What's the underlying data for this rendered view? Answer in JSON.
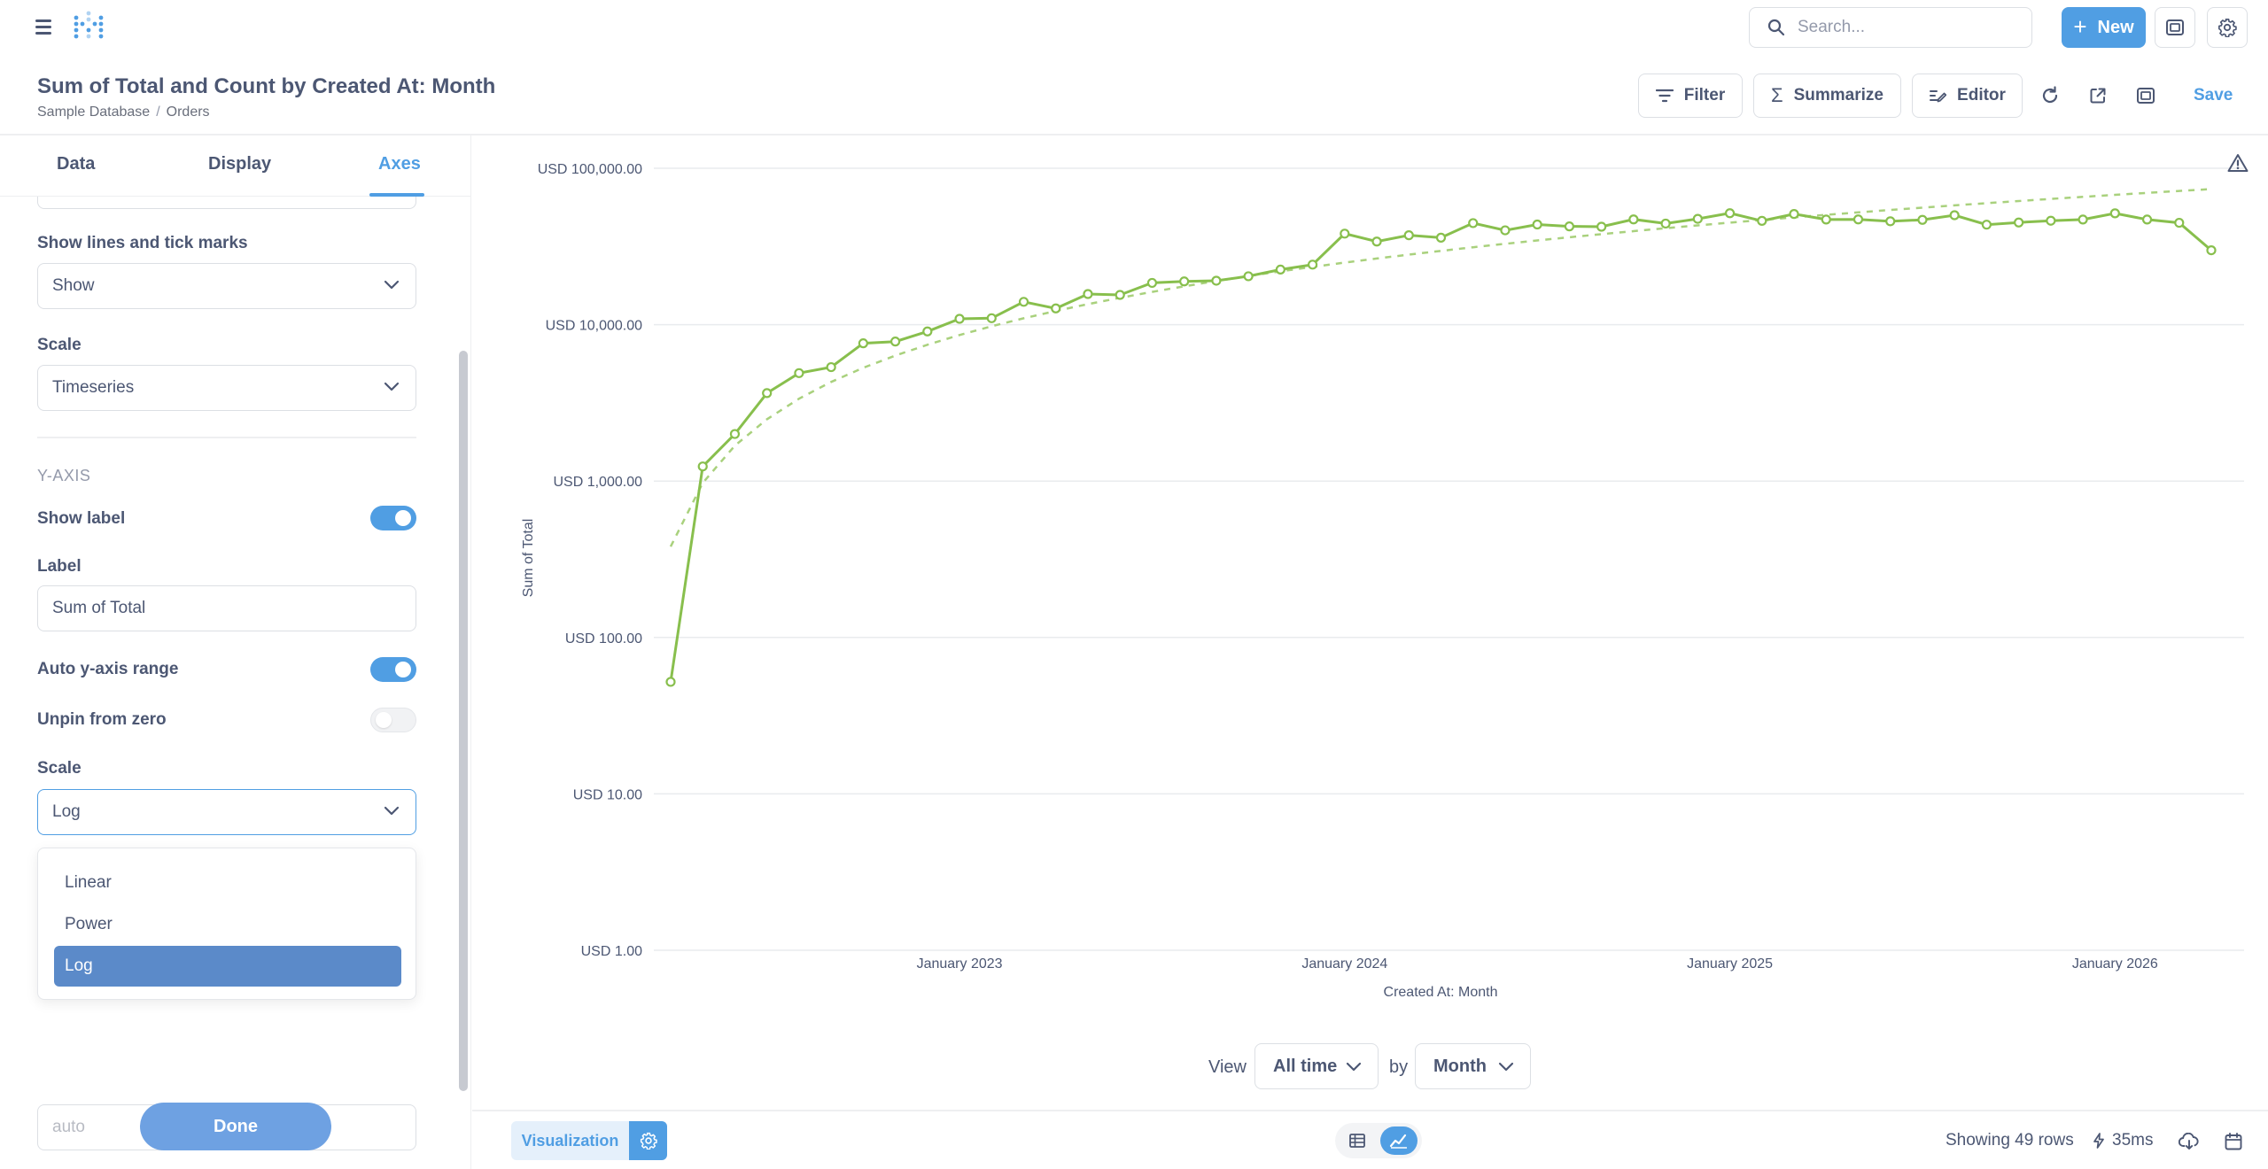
{
  "nav": {
    "search_placeholder": "Search...",
    "new_label": "New"
  },
  "header": {
    "title": "Sum of Total and Count by Created At: Month",
    "breadcrumbs": [
      "Sample Database",
      "Orders"
    ],
    "filter_label": "Filter",
    "summarize_label": "Summarize",
    "editor_label": "Editor",
    "save_label": "Save"
  },
  "sidebar": {
    "tabs": [
      {
        "label": "Data"
      },
      {
        "label": "Display"
      },
      {
        "label": "Axes"
      }
    ],
    "active_tab": "Axes",
    "show_lines_label": "Show lines and tick marks",
    "show_lines_value": "Show",
    "x_scale_label": "Scale",
    "x_scale_value": "Timeseries",
    "y_axis_title": "Y-AXIS",
    "show_label_label": "Show label",
    "show_label_on": true,
    "label_label": "Label",
    "label_value": "Sum of Total",
    "auto_range_label": "Auto y-axis range",
    "auto_range_on": true,
    "unpin_label": "Unpin from zero",
    "unpin_on": false,
    "y_scale_label": "Scale",
    "y_scale_value": "Log",
    "scale_options": [
      "Linear",
      "Power",
      "Log"
    ],
    "hidden_field_placeholder": "auto",
    "done_label": "Done"
  },
  "chart_data": {
    "type": "line",
    "xlabel": "Created At: Month",
    "ylabel": "Sum of Total",
    "y_scale": "log",
    "y_ticks": [
      {
        "value": 1,
        "label": "USD 1.00"
      },
      {
        "value": 10,
        "label": "USD 10.00"
      },
      {
        "value": 100,
        "label": "USD 100.00"
      },
      {
        "value": 1000,
        "label": "USD 1,000.00"
      },
      {
        "value": 10000,
        "label": "USD 10,000.00"
      },
      {
        "value": 100000,
        "label": "USD 100,000.00"
      }
    ],
    "ylim": [
      1,
      100000
    ],
    "x_ticks": [
      {
        "date": "2023-01",
        "label": "January 2023"
      },
      {
        "date": "2024-01",
        "label": "January 2024"
      },
      {
        "date": "2025-01",
        "label": "January 2025"
      },
      {
        "date": "2026-01",
        "label": "January 2026"
      }
    ],
    "x_range": [
      "2022-04",
      "2026-04"
    ],
    "series_color": "#88bf4d",
    "trend_line": true,
    "grid": true,
    "x": [
      "2022-04",
      "2022-05",
      "2022-06",
      "2022-07",
      "2022-08",
      "2022-09",
      "2022-10",
      "2022-11",
      "2022-12",
      "2023-01",
      "2023-02",
      "2023-03",
      "2023-04",
      "2023-05",
      "2023-06",
      "2023-07",
      "2023-08",
      "2023-09",
      "2023-10",
      "2023-11",
      "2023-12",
      "2024-01",
      "2024-02",
      "2024-03",
      "2024-04",
      "2024-05",
      "2024-06",
      "2024-07",
      "2024-08",
      "2024-09",
      "2024-10",
      "2024-11",
      "2024-12",
      "2025-01",
      "2025-02",
      "2025-03",
      "2025-04",
      "2025-05",
      "2025-06",
      "2025-07",
      "2025-08",
      "2025-09",
      "2025-10",
      "2025-11",
      "2025-12",
      "2026-01",
      "2026-02",
      "2026-03",
      "2026-04"
    ],
    "values": [
      52,
      1240,
      2000,
      3650,
      4900,
      5350,
      7600,
      7800,
      9050,
      10900,
      11000,
      14000,
      12700,
      15700,
      15500,
      18500,
      18900,
      19100,
      20400,
      22500,
      24200,
      38200,
      34000,
      37300,
      36000,
      44600,
      40100,
      43700,
      42500,
      42300,
      47100,
      44300,
      47500,
      51600,
      46100,
      51000,
      47000,
      47100,
      45800,
      46800,
      50100,
      43600,
      45000,
      46200,
      47000,
      51500,
      47000,
      44800,
      29900
    ]
  },
  "view_bar": {
    "view_label": "View",
    "range_value": "All time",
    "by_label": "by",
    "unit_value": "Month"
  },
  "footer": {
    "visualization_label": "Visualization",
    "rows_label": "Showing 49 rows",
    "time_label": "35ms"
  }
}
